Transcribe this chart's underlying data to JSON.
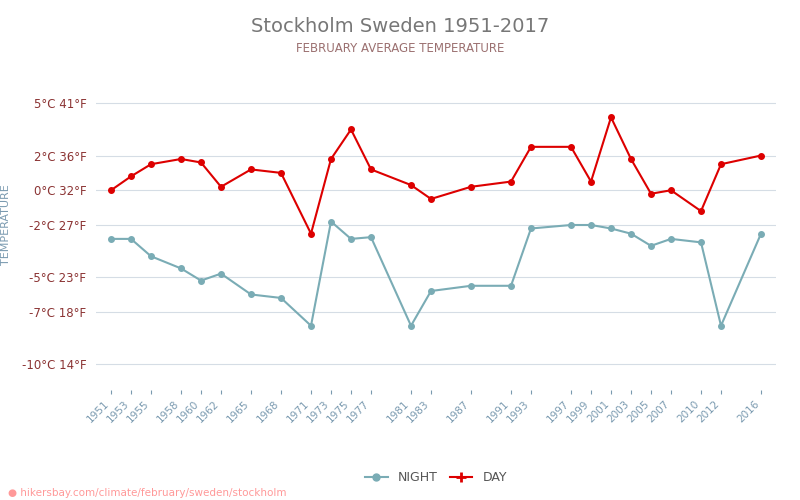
{
  "title": "Stockholm Sweden 1951-2017",
  "subtitle": "FEBRUARY AVERAGE TEMPERATURE",
  "ylabel": "TEMPERATURE",
  "url_text": "● hikersbay.com/climate/february/sweden/stockholm",
  "background_color": "#ffffff",
  "grid_color": "#d5dde5",
  "title_color": "#777777",
  "subtitle_color": "#9b7070",
  "ylabel_color": "#7a9ab0",
  "ytick_color": "#8B3333",
  "xtick_color": "#7a9ab0",
  "xtick_years": [
    1951,
    1953,
    1955,
    1958,
    1960,
    1962,
    1965,
    1968,
    1971,
    1973,
    1975,
    1977,
    1981,
    1983,
    1987,
    1991,
    1993,
    1997,
    1999,
    2001,
    2003,
    2005,
    2007,
    2010,
    2012,
    2016
  ],
  "day_temps": [
    0.0,
    0.8,
    1.5,
    1.8,
    1.6,
    0.2,
    1.2,
    1.0,
    -2.5,
    1.8,
    3.5,
    1.2,
    0.3,
    -0.5,
    0.2,
    0.5,
    2.5,
    2.5,
    0.5,
    4.2,
    1.8,
    -0.2,
    0.0,
    -1.2,
    1.5,
    2.0
  ],
  "night_temps": [
    -2.8,
    -2.8,
    -3.8,
    -4.5,
    -5.2,
    -4.8,
    -6.0,
    -6.2,
    -7.8,
    -1.8,
    -2.8,
    -2.7,
    -7.8,
    -5.8,
    -5.5,
    -5.5,
    -2.2,
    -2.0,
    -2.0,
    -2.2,
    -2.5,
    -3.2,
    -2.8,
    -3.0,
    -7.8,
    -2.5
  ],
  "day_color": "#dd0000",
  "night_color": "#7aacb5",
  "ylim_min": -11.5,
  "ylim_max": 7.5,
  "yticks_c": [
    -10,
    -7,
    -5,
    -2,
    0,
    2,
    5
  ],
  "yticks_f": [
    14,
    18,
    23,
    27,
    32,
    36,
    41
  ]
}
